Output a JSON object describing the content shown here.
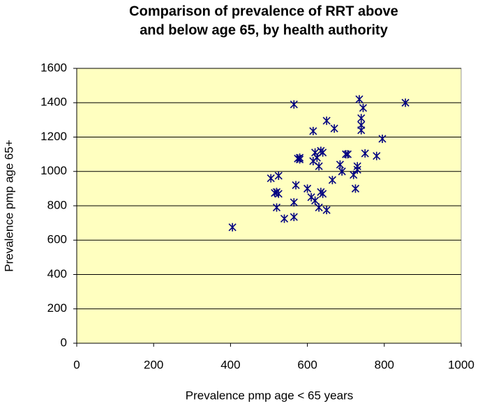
{
  "chart_data": {
    "type": "scatter",
    "title": [
      "Comparison of prevalence of RRT above",
      "and below age 65, by health authority"
    ],
    "x_label": "Prevalence pmp age < 65 years",
    "y_label": "Prevalence pmp age 65+",
    "xlim": [
      0,
      1000
    ],
    "xticks": [
      0,
      200,
      400,
      600,
      800,
      1000
    ],
    "ylim": [
      0,
      1600
    ],
    "yticks": [
      0,
      200,
      400,
      600,
      800,
      1000,
      1200,
      1400,
      1600
    ],
    "grid": true,
    "color": "#000080",
    "background": "#ffffc0",
    "x": [
      405,
      565,
      855,
      735,
      740,
      740,
      740,
      745,
      795,
      750,
      780,
      700,
      705,
      720,
      730,
      730,
      725,
      690,
      685,
      670,
      650,
      615,
      620,
      625,
      635,
      640,
      630,
      615,
      665,
      635,
      640,
      600,
      610,
      620,
      630,
      650,
      575,
      580,
      570,
      565,
      565,
      540,
      520,
      520,
      525,
      505,
      515,
      525,
      580
    ],
    "y": [
      675,
      1390,
      1400,
      1420,
      1310,
      1270,
      1240,
      1370,
      1190,
      1105,
      1090,
      1100,
      1100,
      980,
      1010,
      1030,
      900,
      1000,
      1040,
      1250,
      1295,
      1235,
      1110,
      1080,
      1120,
      1110,
      1030,
      1060,
      950,
      880,
      870,
      900,
      850,
      830,
      790,
      775,
      1075,
      1080,
      920,
      820,
      735,
      725,
      790,
      880,
      870,
      960,
      875,
      975,
      1070
    ]
  }
}
